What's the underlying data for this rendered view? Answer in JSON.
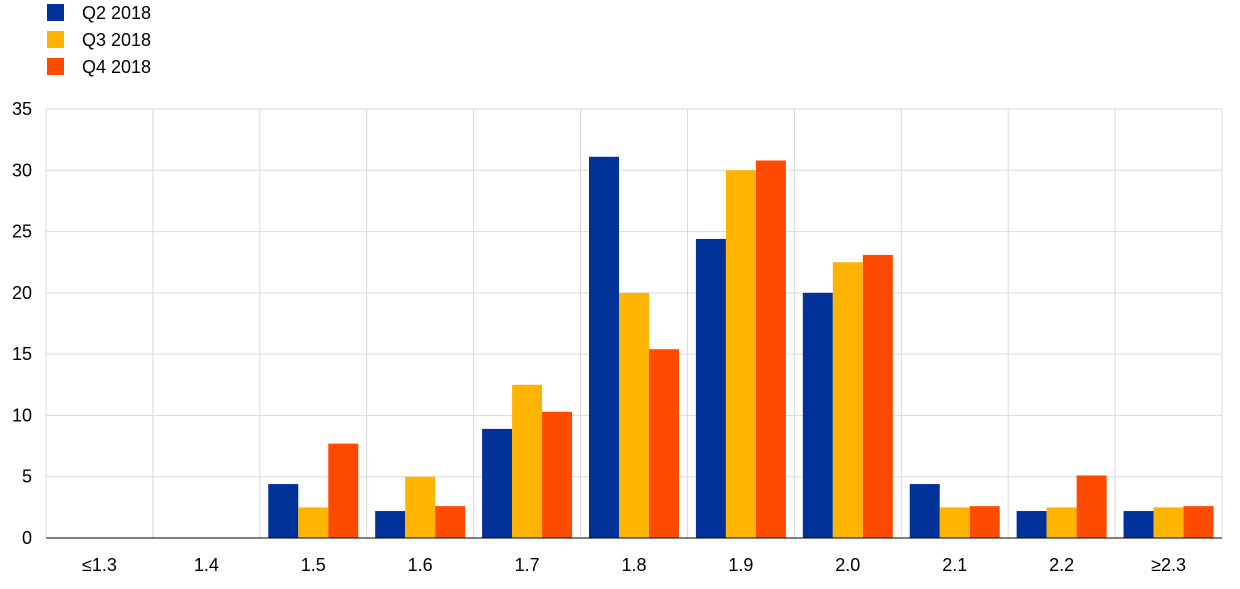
{
  "chart_data": {
    "type": "bar",
    "title": "",
    "xlabel": "",
    "ylabel": "",
    "categories": [
      "≤1.3",
      "1.4",
      "1.5",
      "1.6",
      "1.7",
      "1.8",
      "1.9",
      "2.0",
      "2.1",
      "2.2",
      "≥2.3"
    ],
    "series": [
      {
        "name": "Q2 2018",
        "color": "#003299",
        "values": [
          0,
          0,
          4.4,
          2.2,
          8.9,
          31.1,
          24.4,
          20.0,
          4.4,
          2.2,
          2.2
        ]
      },
      {
        "name": "Q3 2018",
        "color": "#FFB400",
        "values": [
          0,
          0,
          2.5,
          5.0,
          12.5,
          20.0,
          30.0,
          22.5,
          2.5,
          2.5,
          2.5
        ]
      },
      {
        "name": "Q4 2018",
        "color": "#FF4B00",
        "values": [
          0,
          0,
          7.7,
          2.6,
          10.3,
          15.4,
          30.8,
          23.1,
          2.6,
          5.1,
          2.6
        ]
      }
    ],
    "ylim": [
      0,
      35
    ],
    "yticks": [
      0,
      5,
      10,
      15,
      20,
      25,
      30,
      35
    ],
    "grid": true,
    "legend_position": "top-left"
  }
}
